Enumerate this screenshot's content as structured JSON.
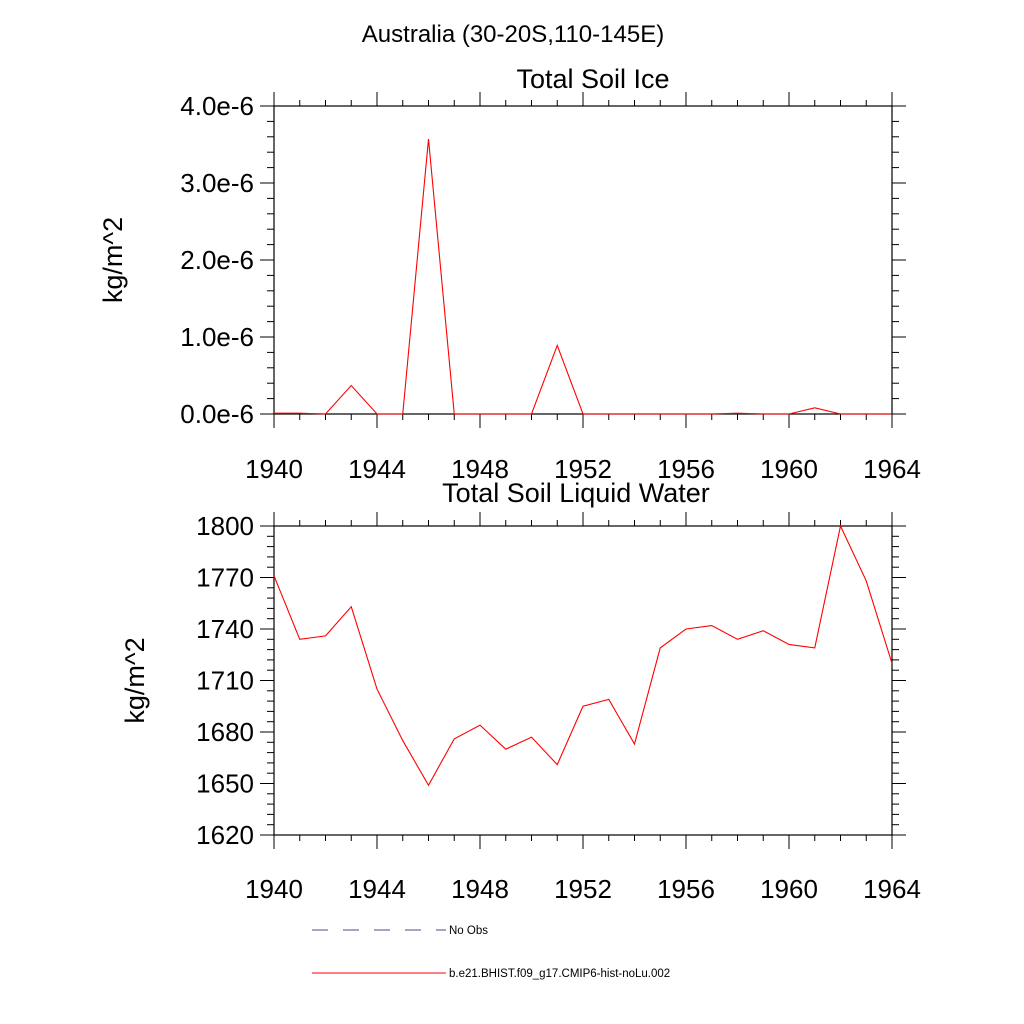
{
  "figure": {
    "main_title": "Australia (30-20S,110-145E)"
  },
  "legend": {
    "entries": [
      {
        "label": "No Obs",
        "color": "#4a4a8a",
        "style": "dashed"
      },
      {
        "label": "b.e21.BHIST.f09_g17.CMIP6-hist-noLu.002",
        "color": "#ff0000",
        "style": "solid"
      }
    ]
  },
  "chart_data": [
    {
      "type": "line",
      "title": "Total Soil Ice",
      "xlabel": "",
      "ylabel": "kg/m^2",
      "xlim": [
        1940,
        1964
      ],
      "ylim": [
        0,
        4e-06
      ],
      "x_ticks": [
        1940,
        1944,
        1948,
        1952,
        1956,
        1960,
        1964
      ],
      "x_tick_labels": [
        "1940",
        "1944",
        "1948",
        "1952",
        "1956",
        "1960",
        "1964"
      ],
      "y_ticks": [
        0,
        1e-06,
        2e-06,
        3e-06,
        4e-06
      ],
      "y_tick_labels": [
        "0.0e-6",
        "1.0e-6",
        "2.0e-6",
        "3.0e-6",
        "4.0e-6"
      ],
      "grid": false,
      "series": [
        {
          "name": "b.e21.BHIST.f09_g17.CMIP6-hist-noLu.002",
          "color": "#ff0000",
          "x": [
            1940,
            1941,
            1942,
            1943,
            1944,
            1945,
            1946,
            1947,
            1948,
            1949,
            1950,
            1951,
            1952,
            1953,
            1954,
            1955,
            1956,
            1957,
            1958,
            1959,
            1960,
            1961,
            1962,
            1963,
            1964
          ],
          "values": [
            1e-08,
            1e-08,
            0,
            3.7e-07,
            0,
            0,
            3.57e-06,
            0,
            0,
            0,
            0,
            8.9e-07,
            0,
            0,
            0,
            0,
            0,
            0,
            1e-08,
            0,
            0,
            8e-08,
            0,
            0,
            0
          ]
        }
      ]
    },
    {
      "type": "line",
      "title": "Total Soil Liquid Water",
      "xlabel": "",
      "ylabel": "kg/m^2",
      "xlim": [
        1940,
        1964
      ],
      "ylim": [
        1620,
        1800
      ],
      "x_ticks": [
        1940,
        1944,
        1948,
        1952,
        1956,
        1960,
        1964
      ],
      "x_tick_labels": [
        "1940",
        "1944",
        "1948",
        "1952",
        "1956",
        "1960",
        "1964"
      ],
      "y_ticks": [
        1620,
        1650,
        1680,
        1710,
        1740,
        1770,
        1800
      ],
      "y_tick_labels": [
        "1620",
        "1650",
        "1680",
        "1710",
        "1740",
        "1770",
        "1800"
      ],
      "grid": false,
      "series": [
        {
          "name": "b.e21.BHIST.f09_g17.CMIP6-hist-noLu.002",
          "color": "#ff0000",
          "x": [
            1940,
            1941,
            1942,
            1943,
            1944,
            1945,
            1946,
            1947,
            1948,
            1949,
            1950,
            1951,
            1952,
            1953,
            1954,
            1955,
            1956,
            1957,
            1958,
            1959,
            1960,
            1961,
            1962,
            1963,
            1964
          ],
          "values": [
            1771,
            1734,
            1736,
            1753,
            1705,
            1675,
            1649,
            1676,
            1684,
            1670,
            1677,
            1661,
            1695,
            1699,
            1673,
            1729,
            1740,
            1742,
            1734,
            1739,
            1731,
            1729,
            1800,
            1768,
            1720
          ]
        }
      ]
    }
  ]
}
